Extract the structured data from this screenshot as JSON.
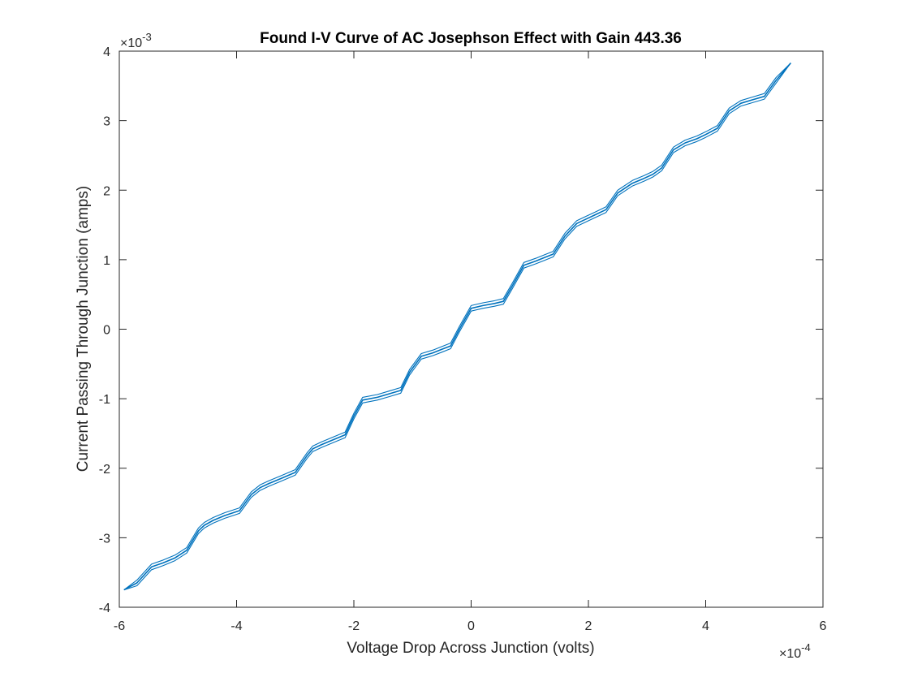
{
  "chart_data": {
    "type": "line",
    "title": "Found I-V Curve of AC Josephson Effect with Gain 443.36",
    "xlabel": "Voltage Drop Across Junction (volts)",
    "ylabel": "Current Passing Through Junction (amps)",
    "x_multiplier": "×10",
    "x_exponent": "-4",
    "y_multiplier": "×10",
    "y_exponent": "-3",
    "xlim": [
      -0.0006,
      0.0006
    ],
    "ylim": [
      -0.004,
      0.004
    ],
    "xticks": [
      -0.0006,
      -0.0004,
      -0.0002,
      0,
      0.0002,
      0.0004,
      0.0006
    ],
    "xtick_labels": [
      "-6",
      "-4",
      "-2",
      "0",
      "2",
      "4",
      "6"
    ],
    "yticks": [
      -0.004,
      -0.003,
      -0.002,
      -0.001,
      0,
      0.001,
      0.002,
      0.003,
      0.004
    ],
    "ytick_labels": [
      "-4",
      "-3",
      "-2",
      "-1",
      "0",
      "1",
      "2",
      "3",
      "4"
    ],
    "grid": false,
    "line_color": "#0072BD",
    "series": [
      {
        "x": [
          -0.000592,
          -0.00057,
          -0.000545,
          -0.000525,
          -0.000505,
          -0.000485,
          -0.000465,
          -0.000455,
          -0.00044,
          -0.00042,
          -0.000395,
          -0.000375,
          -0.00036,
          -0.000345,
          -0.000325,
          -0.0003,
          -0.00028,
          -0.00027,
          -0.000255,
          -0.000235,
          -0.000215,
          -0.0002,
          -0.000185,
          -0.00016,
          -0.00014,
          -0.00012,
          -0.000105,
          -8.5e-05,
          -6.5e-05,
          -5e-05,
          -3.5e-05,
          -2e-05,
          0.0,
          2e-05,
          4e-05,
          5.5e-05,
          7e-05,
          9e-05,
          0.00011,
          0.000125,
          0.00014,
          0.00016,
          0.00018,
          0.000195,
          0.00021,
          0.00023,
          0.00025,
          0.000275,
          0.000295,
          0.00031,
          0.000325,
          0.000345,
          0.000365,
          0.000385,
          0.0004,
          0.00042,
          0.00044,
          0.00046,
          0.00048,
          0.0005,
          0.00052,
          0.000545
        ],
        "y": [
          -0.00375,
          -0.00365,
          -0.00342,
          -0.00336,
          -0.00329,
          -0.00318,
          -0.0029,
          -0.00282,
          -0.00275,
          -0.00268,
          -0.00261,
          -0.00238,
          -0.00228,
          -0.00222,
          -0.00215,
          -0.00206,
          -0.00182,
          -0.00172,
          -0.00166,
          -0.00159,
          -0.00152,
          -0.00125,
          -0.00102,
          -0.00098,
          -0.00093,
          -0.00088,
          -0.00062,
          -0.00039,
          -0.00034,
          -0.00029,
          -0.00024,
          0.0,
          0.0003,
          0.00034,
          0.00037,
          0.0004,
          0.00062,
          0.00092,
          0.00098,
          0.00103,
          0.00108,
          0.00134,
          0.00152,
          0.00158,
          0.00164,
          0.00172,
          0.00196,
          0.0021,
          0.00217,
          0.00223,
          0.00232,
          0.00258,
          0.00268,
          0.00274,
          0.0028,
          0.00289,
          0.00314,
          0.00325,
          0.0033,
          0.00335,
          0.00358,
          0.00383
        ]
      }
    ]
  }
}
